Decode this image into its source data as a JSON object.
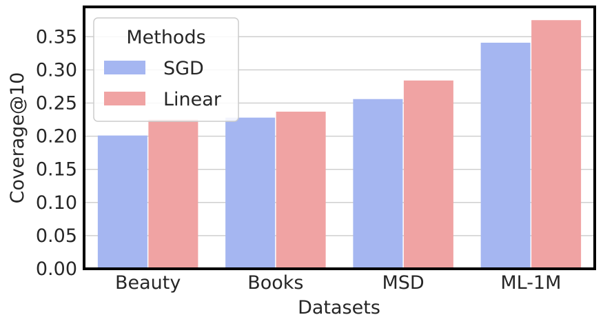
{
  "chart_data": {
    "type": "bar",
    "categories": [
      "Beauty",
      "Books",
      "MSD",
      "ML-1M"
    ],
    "series": [
      {
        "name": "SGD",
        "values": [
          0.201,
          0.228,
          0.256,
          0.341
        ],
        "color": "#a5b6f1"
      },
      {
        "name": "Linear",
        "values": [
          0.225,
          0.237,
          0.284,
          0.375
        ],
        "color": "#f0a3a3"
      }
    ],
    "title": "",
    "xlabel": "Datasets",
    "ylabel": "Coverage@10",
    "ylim": [
      0,
      0.395
    ],
    "yticks": [
      "0.00",
      "0.05",
      "0.10",
      "0.15",
      "0.20",
      "0.25",
      "0.30",
      "0.35"
    ],
    "grid": true,
    "legend": {
      "title": "Methods",
      "placement": "top-left"
    }
  }
}
